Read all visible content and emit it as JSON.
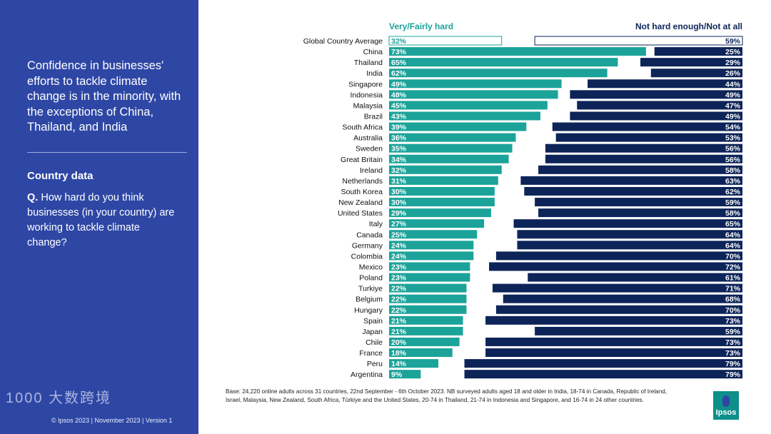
{
  "left_panel": {
    "headline": "Confidence in businesses' efforts to tackle climate change is in the minority, with the exceptions of China, Thailand, and India",
    "section": "Country data",
    "question_prefix": "Q.",
    "question": "How hard do you think businesses (in your country) are working to tackle climate change?",
    "footer": "© Ipsos 2023 | November 2023 | Version 1",
    "watermark": "1000 大数跨境"
  },
  "base_note": "Base: 24,220 online adults across 31 countries, 22nd September - 6th October 2023. NB surveyed adults aged 18 and older in India, 18-74 in Canada, Republic of Ireland, Israel, Malaysia, New Zealand, South Africa, Türkiye and the United States, 20-74 in Thailand, 21-74 in Indonesia and Singapore, and 16-74 in 24 other countries.",
  "logo": "Ipsos",
  "colors": {
    "teal": "#1ba39a",
    "navy": "#0d2458",
    "panel": "#2e47a5"
  },
  "chart_data": {
    "type": "bar",
    "orientation": "horizontal-diverging",
    "legend": [
      "Very/Fairly hard",
      "Not hard enough/Not at all"
    ],
    "categories": [
      "Global Country Average",
      "China",
      "Thailand",
      "India",
      "Singapore",
      "Indonesia",
      "Malaysia",
      "Brazil",
      "South Africa",
      "Australia",
      "Sweden",
      "Great Britain",
      "Ireland",
      "Netherlands",
      "South Korea",
      "New Zealand",
      "United States",
      "Italy",
      "Canada",
      "Germany",
      "Colombia",
      "Mexico",
      "Poland",
      "Turkiye",
      "Belgium",
      "Hungary",
      "Spain",
      "Japan",
      "Chile",
      "France",
      "Peru",
      "Argentina"
    ],
    "series": [
      {
        "name": "Very/Fairly hard",
        "values": [
          32,
          73,
          65,
          62,
          49,
          48,
          45,
          43,
          39,
          36,
          35,
          34,
          32,
          31,
          30,
          30,
          29,
          27,
          25,
          24,
          24,
          23,
          23,
          22,
          22,
          22,
          21,
          21,
          20,
          18,
          14,
          9
        ]
      },
      {
        "name": "Not hard enough/Not at all",
        "values": [
          59,
          25,
          29,
          26,
          44,
          49,
          47,
          49,
          54,
          53,
          56,
          56,
          58,
          63,
          62,
          59,
          58,
          65,
          64,
          64,
          70,
          72,
          61,
          71,
          68,
          70,
          73,
          59,
          73,
          73,
          79,
          79
        ]
      }
    ],
    "unit": "%"
  }
}
